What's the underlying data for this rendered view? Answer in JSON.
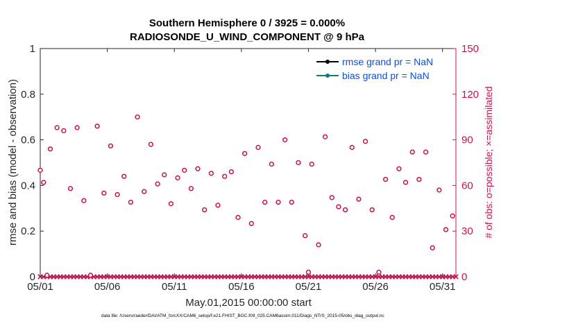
{
  "chart_data": {
    "type": "scatter",
    "title_line1": "Southern Hemisphere 0 / 3925 = 0.000%",
    "title_line2": "RADIOSONDE_U_WIND_COMPONENT @ 9 hPa",
    "xlabel": "May.01,2015 00:00:00 start",
    "ylabel": "rmse and bias (model - observation)",
    "ylabel_right": "# of obs: o=possible; ×=assimilated",
    "xlim": [
      1,
      32
    ],
    "ylim": [
      0,
      1
    ],
    "ylim_right": [
      0,
      150
    ],
    "x_ticks": [
      1,
      6,
      11,
      16,
      21,
      26,
      31
    ],
    "x_tick_labels": [
      "05/01",
      "05/06",
      "05/11",
      "05/16",
      "05/21",
      "05/26",
      "05/31"
    ],
    "y_ticks": [
      0,
      0.2,
      0.4,
      0.6,
      0.8,
      1
    ],
    "y_tick_labels": [
      "0",
      "0.2",
      "0.4",
      "0.6",
      "0.8",
      "1"
    ],
    "y_right_ticks": [
      0,
      30,
      60,
      90,
      120,
      150
    ],
    "y_right_tick_labels": [
      "0",
      "30",
      "60",
      "90",
      "120",
      "150"
    ],
    "legend": [
      {
        "label": "rmse grand pr = NaN",
        "color": "#000000"
      },
      {
        "label": "bias grand pr = NaN",
        "color": "#0f7b7b"
      }
    ],
    "series": [
      {
        "name": "possible observations",
        "axis": "right",
        "marker": "o",
        "color": "#c8104f",
        "x": [
          1.0,
          1.25,
          1.5,
          1.75,
          2.25,
          2.75,
          3.25,
          3.75,
          4.25,
          4.75,
          5.25,
          5.75,
          6.25,
          6.75,
          7.25,
          7.75,
          8.25,
          8.75,
          9.25,
          9.75,
          10.25,
          10.75,
          11.25,
          11.75,
          12.25,
          12.75,
          13.25,
          13.75,
          14.25,
          14.75,
          15.25,
          15.75,
          16.25,
          16.75,
          17.25,
          17.75,
          18.25,
          18.75,
          19.25,
          19.75,
          20.25,
          20.75,
          21.0,
          21.25,
          21.75,
          22.25,
          22.75,
          23.25,
          23.75,
          24.25,
          24.75,
          25.25,
          25.75,
          26.25,
          26.75,
          27.25,
          27.75,
          28.25,
          28.75,
          29.25,
          29.75,
          30.25,
          30.75,
          31.25,
          31.75
        ],
        "y": [
          70,
          62,
          1,
          84,
          98,
          96,
          58,
          98,
          50,
          1,
          99,
          55,
          86,
          54,
          66,
          49,
          105,
          56,
          87,
          61,
          67,
          48,
          65,
          70,
          58,
          71,
          44,
          68,
          47,
          66,
          69,
          39,
          81,
          35,
          85,
          49,
          74,
          49,
          90,
          49,
          75,
          27,
          3,
          74,
          21,
          92,
          52,
          46,
          44,
          85,
          51,
          89,
          44,
          3,
          64,
          39,
          71,
          62,
          82,
          64,
          82,
          19,
          57,
          31,
          40
        ]
      },
      {
        "name": "assimilated observations",
        "axis": "right",
        "marker": "x",
        "color": "#c8104f",
        "x_start": 1,
        "x_end": 32,
        "x_step": 0.25,
        "value": 0
      }
    ]
  },
  "footer": {
    "data_file": "data file: /Users/raeder/DAI/ATM_forcXX/CAM6_setup/f.e21.FHIST_BGC.f09_025.CAM6assim.011/Diags_NTrS_2015-05/obs_diag_output.nc"
  }
}
